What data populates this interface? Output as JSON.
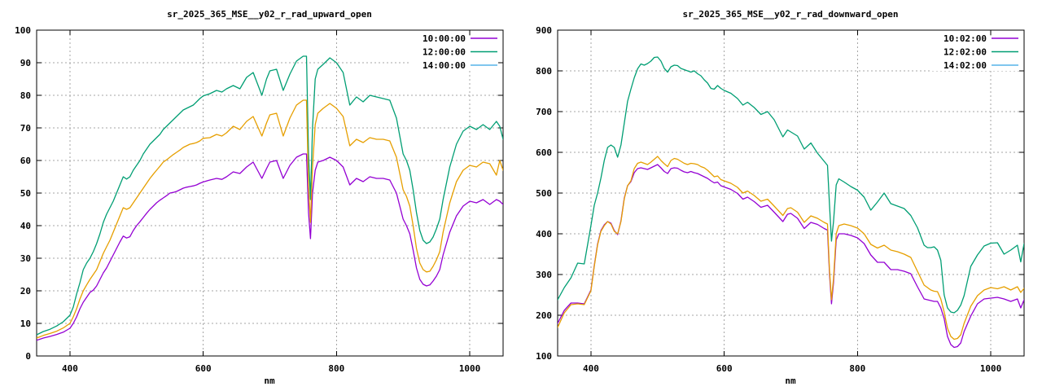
{
  "style": {
    "background": "#ffffff",
    "border_color": "#000000",
    "grid_color": "#a6a6a6",
    "text_color": "#000000",
    "legend_bg": "#ffffff"
  },
  "chart_data": [
    {
      "type": "line",
      "title": "sr_2025_365_MSE__y02_r_rad_upward_open",
      "xlabel": "nm",
      "ylabel": "",
      "xlim": [
        350,
        1050
      ],
      "ylim": [
        0,
        100
      ],
      "xticks": [
        400,
        600,
        800,
        1000
      ],
      "yticks": [
        0,
        10,
        20,
        30,
        40,
        50,
        60,
        70,
        80,
        90,
        100
      ],
      "grid": true,
      "legend_position": "top-right",
      "x": [
        350,
        360,
        370,
        380,
        390,
        400,
        405,
        410,
        415,
        420,
        425,
        430,
        435,
        440,
        445,
        450,
        455,
        460,
        465,
        470,
        475,
        480,
        485,
        490,
        495,
        500,
        505,
        510,
        515,
        520,
        525,
        530,
        535,
        540,
        545,
        550,
        555,
        560,
        565,
        570,
        575,
        580,
        585,
        590,
        595,
        600,
        610,
        620,
        628,
        635,
        645,
        655,
        665,
        675,
        688,
        695,
        700,
        710,
        720,
        730,
        740,
        750,
        755,
        758,
        761,
        764,
        768,
        772,
        780,
        790,
        800,
        810,
        820,
        830,
        840,
        850,
        860,
        870,
        880,
        890,
        900,
        905,
        910,
        915,
        920,
        925,
        930,
        935,
        940,
        945,
        950,
        955,
        960,
        970,
        980,
        990,
        1000,
        1010,
        1020,
        1030,
        1040,
        1045,
        1050
      ],
      "series": [
        {
          "name": "10:00:00",
          "color": "#9400d3",
          "legend_color": "#9400d3",
          "values": [
            4.8,
            5.5,
            6,
            6.6,
            7.3,
            8.5,
            10,
            12,
            14.5,
            16.5,
            18,
            19.5,
            20.2,
            21.5,
            23.5,
            25.5,
            27,
            29,
            31,
            33,
            35,
            36.8,
            36.2,
            36.6,
            38.5,
            40,
            41.2,
            42.5,
            43.8,
            45,
            46,
            47,
            47.8,
            48.5,
            49.2,
            50,
            50.2,
            50.5,
            51,
            51.5,
            51.8,
            52,
            52.2,
            52.5,
            53,
            53.4,
            54,
            54.5,
            54.2,
            55,
            56.5,
            56,
            58,
            59.5,
            54.5,
            57.5,
            59.5,
            60,
            54.5,
            58.5,
            61,
            62,
            62,
            44,
            36,
            50,
            57,
            59.5,
            60,
            61,
            60,
            58,
            52.5,
            54.5,
            53.5,
            55,
            54.5,
            54.5,
            54,
            50,
            42,
            40,
            37.5,
            32.5,
            27,
            23.5,
            22,
            21.5,
            21.8,
            23,
            24.5,
            26.5,
            31,
            38,
            43,
            46,
            47.5,
            47,
            48,
            46.5,
            48,
            47.5,
            46.5
          ]
        },
        {
          "name": "12:00:00",
          "color": "#009e73",
          "legend_color": "#009e73",
          "values": [
            6.5,
            7.5,
            8.2,
            9.2,
            10.5,
            12.5,
            15,
            19,
            22.5,
            26.5,
            28.5,
            30,
            32,
            34.5,
            37.5,
            41,
            43.5,
            45.5,
            47.5,
            50,
            52.5,
            55,
            54.3,
            55,
            57,
            58.5,
            60,
            62,
            63.5,
            65,
            66,
            67,
            68,
            69.5,
            70.5,
            71.5,
            72.5,
            73.5,
            74.5,
            75.5,
            76,
            76.5,
            77,
            78,
            79,
            79.8,
            80.5,
            81.5,
            81,
            82,
            83,
            82,
            85.5,
            87,
            80,
            85,
            87.5,
            88,
            81.5,
            86.5,
            90.5,
            92,
            92,
            62,
            48,
            70,
            85,
            88,
            89.5,
            91.5,
            90,
            87,
            77,
            79.5,
            78,
            80,
            79.5,
            79,
            78.5,
            73,
            62,
            60,
            57,
            51,
            44,
            38.5,
            35.5,
            34.5,
            35,
            36.5,
            39,
            42,
            48,
            58,
            65,
            69,
            70.5,
            69.5,
            71,
            69.5,
            72,
            70.5,
            66.5
          ]
        },
        {
          "name": "14:00:00",
          "color": "#e69f00",
          "legend_color": "#56b4e9",
          "values": [
            5.5,
            6.3,
            6.9,
            7.6,
            8.6,
            10,
            12,
            14.5,
            17.5,
            20,
            21.8,
            23.5,
            25,
            26.5,
            29,
            31.5,
            33.5,
            35.5,
            38,
            40.5,
            43,
            45.5,
            45,
            45.5,
            47,
            48.5,
            50,
            51.5,
            53,
            54.5,
            55.8,
            57,
            58.2,
            59.5,
            60.2,
            61,
            61.8,
            62.5,
            63.2,
            64,
            64.5,
            65,
            65.2,
            65.5,
            66,
            66.8,
            67,
            68,
            67.5,
            68.5,
            70.5,
            69.5,
            72,
            73.5,
            67.5,
            71.5,
            74,
            74.5,
            67.5,
            73,
            77,
            78.5,
            78.5,
            52,
            41,
            58,
            71,
            74.5,
            76,
            77.5,
            76,
            73.5,
            64.5,
            66.5,
            65.5,
            67,
            66.5,
            66.5,
            66,
            61,
            51,
            49,
            46,
            40,
            33,
            28.5,
            26.5,
            25.8,
            26,
            27.5,
            29.5,
            32,
            38,
            47,
            53.5,
            57,
            58.5,
            58,
            59.5,
            59,
            55.5,
            60,
            57
          ]
        }
      ]
    },
    {
      "type": "line",
      "title": "sr_2025_365_MSE__y02_r_rad_downward_open",
      "xlabel": "nm",
      "ylabel": "",
      "xlim": [
        350,
        1050
      ],
      "ylim": [
        100,
        900
      ],
      "xticks": [
        400,
        600,
        800,
        1000
      ],
      "yticks": [
        100,
        200,
        300,
        400,
        500,
        600,
        700,
        800,
        900
      ],
      "grid": true,
      "legend_position": "top-right",
      "x": [
        350,
        360,
        370,
        380,
        390,
        400,
        405,
        410,
        415,
        420,
        425,
        430,
        435,
        440,
        445,
        450,
        455,
        460,
        465,
        470,
        475,
        480,
        485,
        490,
        495,
        500,
        505,
        510,
        515,
        520,
        525,
        530,
        535,
        540,
        545,
        550,
        555,
        560,
        565,
        570,
        575,
        580,
        585,
        590,
        595,
        600,
        610,
        620,
        628,
        635,
        645,
        655,
        665,
        675,
        688,
        695,
        700,
        710,
        720,
        730,
        740,
        750,
        755,
        758,
        761,
        764,
        768,
        772,
        780,
        790,
        800,
        810,
        820,
        830,
        840,
        850,
        860,
        870,
        880,
        890,
        900,
        905,
        910,
        915,
        920,
        925,
        930,
        935,
        940,
        945,
        950,
        955,
        960,
        970,
        980,
        990,
        1000,
        1010,
        1020,
        1030,
        1040,
        1045,
        1050
      ],
      "series": [
        {
          "name": "10:02:00",
          "color": "#9400d3",
          "legend_color": "#9400d3",
          "values": [
            180,
            212,
            230,
            230,
            228,
            262,
            322,
            375,
            408,
            422,
            430,
            426,
            408,
            398,
            432,
            488,
            518,
            528,
            550,
            560,
            562,
            560,
            558,
            562,
            566,
            570,
            562,
            553,
            548,
            560,
            562,
            561,
            556,
            552,
            550,
            553,
            550,
            548,
            544,
            540,
            536,
            530,
            525,
            527,
            518,
            515,
            509,
            499,
            485,
            490,
            479,
            465,
            470,
            453,
            430,
            448,
            450,
            438,
            413,
            428,
            423,
            413,
            409,
            300,
            228,
            280,
            385,
            400,
            400,
            396,
            390,
            376,
            348,
            330,
            330,
            312,
            312,
            308,
            302,
            270,
            240,
            238,
            236,
            234,
            234,
            218,
            192,
            148,
            128,
            121,
            123,
            132,
            160,
            198,
            228,
            240,
            242,
            244,
            240,
            234,
            240,
            218,
            238
          ]
        },
        {
          "name": "12:02:00",
          "color": "#009e73",
          "legend_color": "#009e73",
          "values": [
            238,
            268,
            292,
            328,
            326,
            420,
            470,
            500,
            537,
            580,
            612,
            618,
            612,
            588,
            618,
            672,
            725,
            755,
            783,
            805,
            817,
            814,
            818,
            824,
            833,
            834,
            824,
            806,
            797,
            810,
            814,
            813,
            806,
            803,
            800,
            797,
            800,
            793,
            788,
            778,
            770,
            757,
            755,
            764,
            757,
            752,
            745,
            732,
            716,
            723,
            710,
            693,
            700,
            680,
            638,
            655,
            650,
            640,
            608,
            623,
            598,
            578,
            568,
            470,
            382,
            430,
            520,
            535,
            527,
            516,
            507,
            490,
            458,
            478,
            500,
            474,
            468,
            462,
            445,
            415,
            372,
            366,
            366,
            368,
            360,
            335,
            250,
            218,
            208,
            206,
            212,
            225,
            248,
            320,
            348,
            370,
            377,
            378,
            350,
            360,
            372,
            331,
            376
          ]
        },
        {
          "name": "14:02:00",
          "color": "#e69f00",
          "legend_color": "#56b4e9",
          "values": [
            170,
            206,
            226,
            228,
            226,
            260,
            320,
            373,
            406,
            420,
            430,
            424,
            406,
            400,
            430,
            486,
            518,
            530,
            560,
            573,
            576,
            573,
            570,
            576,
            583,
            590,
            580,
            572,
            565,
            580,
            585,
            583,
            578,
            573,
            570,
            573,
            572,
            570,
            565,
            562,
            556,
            548,
            540,
            542,
            533,
            530,
            524,
            514,
            500,
            505,
            494,
            480,
            485,
            468,
            445,
            462,
            464,
            453,
            428,
            444,
            438,
            428,
            424,
            310,
            238,
            290,
            400,
            420,
            424,
            420,
            414,
            400,
            374,
            365,
            372,
            360,
            356,
            350,
            342,
            308,
            274,
            268,
            262,
            259,
            258,
            240,
            208,
            168,
            148,
            141,
            143,
            152,
            180,
            222,
            248,
            262,
            268,
            265,
            270,
            262,
            270,
            256,
            266
          ]
        }
      ]
    }
  ]
}
